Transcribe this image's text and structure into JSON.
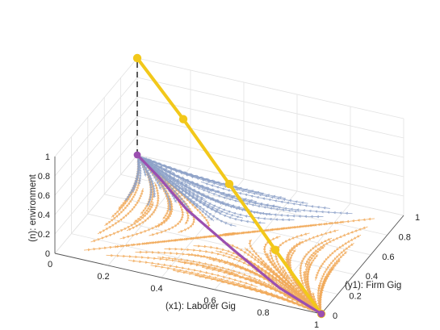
{
  "chart_data": {
    "type": "3d-line-streamplot",
    "x_axis": {
      "label": "(x1): Laborer Gig",
      "ticks": [
        "0",
        "0.2",
        "0.4",
        "0.6",
        "0.8",
        "1"
      ],
      "range": [
        0,
        1
      ]
    },
    "y_axis": {
      "label": "(y1): Firm Gig",
      "ticks": [
        "0",
        "0.2",
        "0.4",
        "0.6",
        "0.8",
        "1"
      ],
      "range": [
        0,
        1
      ]
    },
    "z_axis": {
      "label": "(n): environment",
      "ticks": [
        "0",
        "0.2",
        "0.4",
        "0.6",
        "0.8",
        "1"
      ],
      "range": [
        0,
        1
      ]
    },
    "grid": true,
    "colors": {
      "yellow": "#f2c81a",
      "purple": "#9b4fb0",
      "stream_blue": "#8ea2c8",
      "stream_orange": "#f1aa5a",
      "dashed": "#333333"
    },
    "series": [
      {
        "color": "yellow",
        "marker": "circle",
        "x": [
          0,
          0.25,
          0.5,
          0.75,
          1.0
        ],
        "y": [
          1.0,
          0.75,
          0.5,
          0.25,
          0.0
        ],
        "z": [
          1.0,
          0.78,
          0.52,
          0.25,
          0.0
        ]
      },
      {
        "color": "purple",
        "marker": "end-circles",
        "x": [
          0,
          0.12,
          0.3,
          0.55,
          0.8,
          1.0
        ],
        "y": [
          1.0,
          0.86,
          0.63,
          0.38,
          0.14,
          0.0
        ],
        "z": [
          0.0,
          0.0,
          0.0,
          0.0,
          0.0,
          0.0
        ]
      }
    ],
    "dashed_drop_line": {
      "x": 0,
      "y": 1,
      "z": [
        0,
        1
      ]
    }
  }
}
